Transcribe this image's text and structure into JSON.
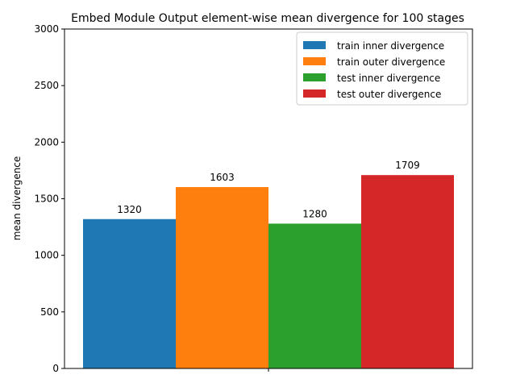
{
  "chart_data": {
    "type": "bar",
    "title": "Embed Module Output element-wise mean divergence for 100 stages",
    "xlabel": "",
    "ylabel": "mean divergence",
    "ylim": [
      0,
      3000
    ],
    "yticks": [
      0,
      500,
      1000,
      1500,
      2000,
      2500,
      3000
    ],
    "grid": false,
    "legend_position": "top-right",
    "series": [
      {
        "name": "train inner divergence",
        "value": 1320,
        "label": "1320",
        "color": "#1f77b4"
      },
      {
        "name": "train outer divergence",
        "value": 1603,
        "label": "1603",
        "color": "#ff7f0e"
      },
      {
        "name": "test inner divergence",
        "value": 1280,
        "label": "1280",
        "color": "#2ca02c"
      },
      {
        "name": "test outer divergence",
        "value": 1709,
        "label": "1709",
        "color": "#d62728"
      }
    ]
  }
}
